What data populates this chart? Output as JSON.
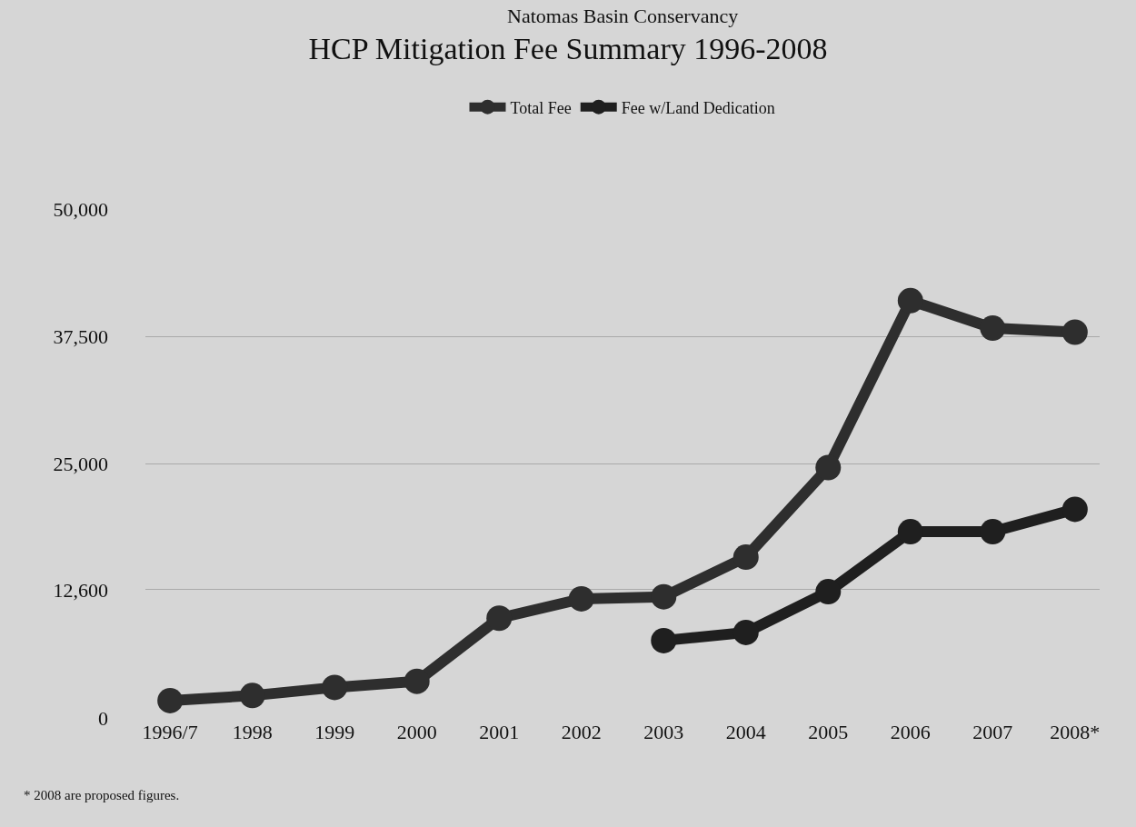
{
  "chart_data": {
    "type": "line",
    "subtitle": "Natomas Basin Conservancy",
    "title": "HCP Mitigation Fee Summary 1996-2008",
    "categories": [
      "1996/7",
      "1998",
      "1999",
      "2000",
      "2001",
      "2002",
      "2003",
      "2004",
      "2005",
      "2006",
      "2007",
      "2008*"
    ],
    "series": [
      {
        "name": "Total Fee",
        "color": "#2e2e2e",
        "values": [
          1700,
          2200,
          3000,
          3600,
          9800,
          11700,
          11900,
          15800,
          24600,
          41000,
          38300,
          37900
        ]
      },
      {
        "name": "Fee w/Land Dedication",
        "color": "#1f1f1f",
        "values": [
          null,
          null,
          null,
          null,
          null,
          null,
          7600,
          8400,
          12400,
          18300,
          18300,
          20500
        ]
      }
    ],
    "ylim": [
      0,
      50000
    ],
    "yticks": [
      0,
      {
        "value": 12600,
        "label": "12,600"
      },
      {
        "value": 25000,
        "label": "25,000"
      },
      {
        "value": 37500,
        "label": "37,500"
      },
      {
        "value": 50000,
        "label": "50,000"
      }
    ],
    "grid": "y",
    "legend": "top",
    "marker": "circle",
    "line_style": "solid",
    "annotations": [
      "* 2008 are proposed figures."
    ]
  }
}
